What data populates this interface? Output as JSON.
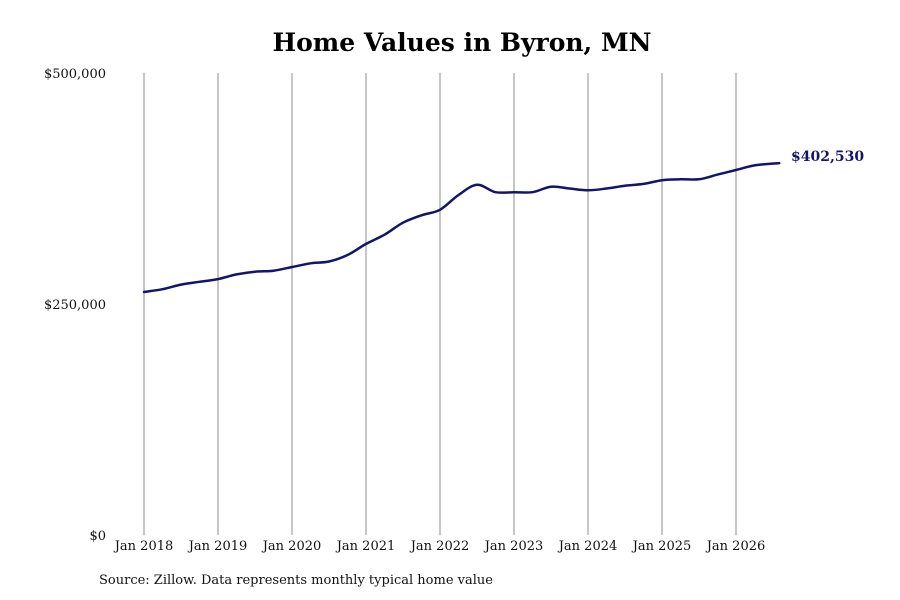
{
  "chart_data": {
    "type": "line",
    "title": "Home Values in Byron, MN",
    "xlabel": "",
    "ylabel": "",
    "ylim": [
      0,
      500000
    ],
    "y_ticks": [
      {
        "value": 0,
        "label": "$0"
      },
      {
        "value": 250000,
        "label": "$250,000"
      },
      {
        "value": 500000,
        "label": "$500,000"
      }
    ],
    "x_ticks": [
      {
        "value": 2018,
        "label": "Jan 2018"
      },
      {
        "value": 2019,
        "label": "Jan 2019"
      },
      {
        "value": 2020,
        "label": "Jan 2020"
      },
      {
        "value": 2021,
        "label": "Jan 2021"
      },
      {
        "value": 2022,
        "label": "Jan 2022"
      },
      {
        "value": 2023,
        "label": "Jan 2023"
      },
      {
        "value": 2024,
        "label": "Jan 2024"
      },
      {
        "value": 2025,
        "label": "Jan 2025"
      },
      {
        "value": 2026,
        "label": "Jan 2026"
      }
    ],
    "grid": "vertical",
    "line_color": "#14146b",
    "series": [
      {
        "x": [
          "2018-01",
          "2018-04",
          "2018-07",
          "2018-10",
          "2019-01",
          "2019-04",
          "2019-07",
          "2019-10",
          "2020-01",
          "2020-04",
          "2020-07",
          "2020-10",
          "2021-01",
          "2021-04",
          "2021-07",
          "2021-10",
          "2022-01",
          "2022-04",
          "2022-07",
          "2022-10",
          "2023-01",
          "2023-04",
          "2023-07",
          "2023-10",
          "2024-01",
          "2024-04",
          "2024-07",
          "2024-10",
          "2025-01",
          "2025-04",
          "2025-07",
          "2025-10",
          "2026-01",
          "2026-04",
          "2026-08"
        ],
        "values": [
          263000,
          266000,
          271000,
          274000,
          277000,
          282000,
          285000,
          286000,
          290000,
          294000,
          296000,
          303000,
          315000,
          325000,
          338000,
          346000,
          352000,
          368000,
          379000,
          371000,
          371000,
          371000,
          377000,
          375000,
          373000,
          375000,
          378000,
          380000,
          384000,
          385000,
          385000,
          390000,
          395000,
          400000,
          402530
        ]
      }
    ],
    "end_label": "$402,530"
  },
  "source_note": "Source: Zillow. Data represents monthly typical home value"
}
